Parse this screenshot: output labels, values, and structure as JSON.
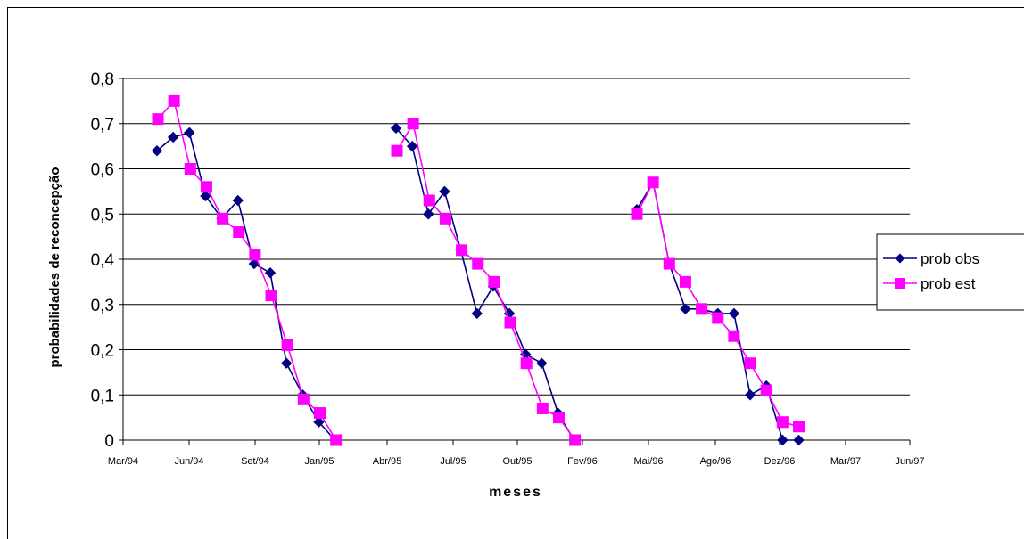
{
  "chart_data": {
    "type": "line",
    "xlabel": "meses",
    "ylabel": "probabilidades de reconcepção",
    "ylim": [
      0,
      0.8
    ],
    "y_ticks": [
      "0",
      "0,1",
      "0,2",
      "0,3",
      "0,4",
      "0,5",
      "0,6",
      "0,7",
      "0,8"
    ],
    "x_ticks": [
      "Mar/94",
      "Jun/94",
      "Set/94",
      "Jan/95",
      "Abr/95",
      "Jul/95",
      "Out/95",
      "Fev/96",
      "Mai/96",
      "Ago/96",
      "Dez/96",
      "Mar/97",
      "Jun/97"
    ],
    "grid": true,
    "legend_position": "right",
    "series": [
      {
        "name": "prob obs",
        "color": "#000080",
        "marker": "diamond",
        "segments": [
          [
            0.64,
            0.67,
            0.68,
            0.54,
            0.49,
            0.53,
            0.39,
            0.37,
            0.17,
            0.1,
            0.04,
            0.0
          ],
          [
            0.69,
            0.65,
            0.5,
            0.55,
            0.42,
            0.28,
            0.34,
            0.28,
            0.19,
            0.17,
            0.06,
            0.0
          ],
          [
            0.51,
            0.57,
            0.39,
            0.29,
            0.29,
            0.28,
            0.28,
            0.1,
            0.12,
            0.0,
            0.0
          ]
        ]
      },
      {
        "name": "prob est",
        "color": "#FF00FF",
        "marker": "square",
        "segments": [
          [
            0.71,
            0.75,
            0.6,
            0.56,
            0.49,
            0.46,
            0.41,
            0.32,
            0.21,
            0.09,
            0.06,
            0.0
          ],
          [
            0.64,
            0.7,
            0.53,
            0.49,
            0.42,
            0.39,
            0.35,
            0.26,
            0.17,
            0.07,
            0.05,
            0.0
          ],
          [
            0.5,
            0.57,
            0.39,
            0.35,
            0.29,
            0.27,
            0.23,
            0.17,
            0.11,
            0.04,
            0.03
          ]
        ]
      }
    ]
  }
}
